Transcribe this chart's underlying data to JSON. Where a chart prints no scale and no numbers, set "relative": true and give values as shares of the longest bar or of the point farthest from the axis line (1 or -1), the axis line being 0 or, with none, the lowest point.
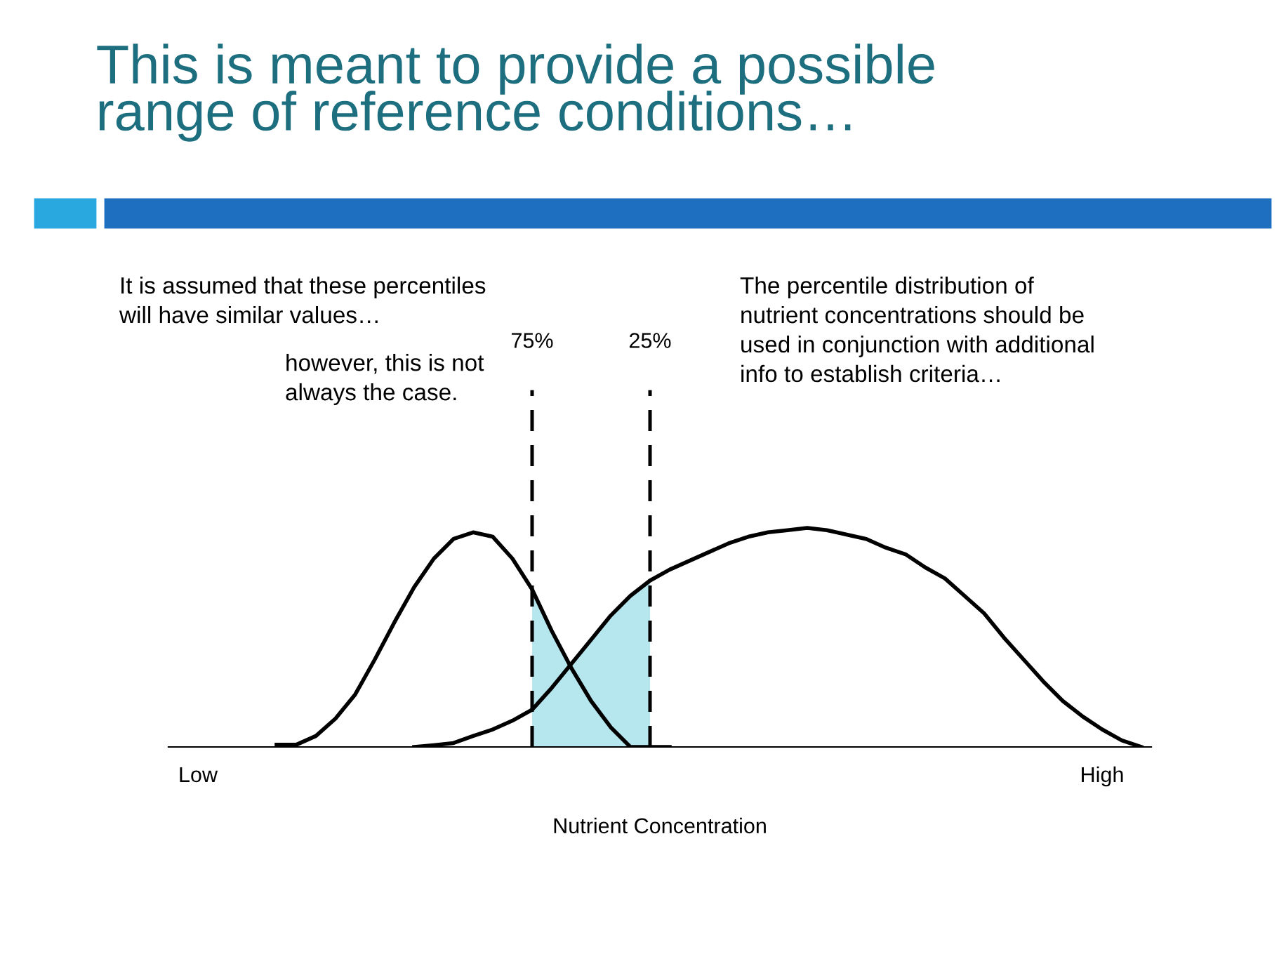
{
  "chart_data": {
    "type": "line",
    "relative": true,
    "title": "This is meant to provide a possible\nrange of reference conditions…",
    "xlabel": "Nutrient Concentration",
    "categories": [
      null,
      "Low",
      null,
      null,
      null,
      null,
      null,
      null,
      null,
      null,
      null,
      null,
      null,
      null,
      null,
      null,
      null,
      null,
      null,
      null,
      null,
      null,
      null,
      null,
      null,
      null,
      null,
      null,
      null,
      null,
      null,
      null,
      null,
      null,
      null,
      null,
      null,
      null,
      null,
      null,
      null,
      null,
      null,
      null,
      null,
      null,
      null,
      "High",
      null,
      null
    ],
    "series": [
      {
        "type": "area",
        "color": "#b6e6ee",
        "values": [
          null,
          null,
          null,
          null,
          null,
          null,
          null,
          null,
          null,
          null,
          null,
          null,
          null,
          null,
          null,
          null,
          null,
          null,
          0.72,
          0.53,
          0.38,
          0.49,
          0.6,
          0.69,
          0.76,
          null,
          null,
          null,
          null,
          null,
          null,
          null,
          null,
          null,
          null,
          null,
          null,
          null,
          null,
          null,
          null,
          null,
          null,
          null,
          null,
          null,
          null,
          null,
          null,
          null
        ]
      },
      {
        "color": "#000000",
        "values": [
          null,
          null,
          null,
          null,
          null,
          0.01,
          0.01,
          0.05,
          0.13,
          0.24,
          0.4,
          0.57,
          0.73,
          0.86,
          0.95,
          0.98,
          0.96,
          0.86,
          0.72,
          0.53,
          0.36,
          0.21,
          0.09,
          0,
          0,
          0,
          null,
          null,
          null,
          null,
          null,
          null,
          null,
          null,
          null,
          null,
          null,
          null,
          null,
          null,
          null,
          null,
          null,
          null,
          null,
          null,
          null,
          null,
          null,
          null
        ]
      },
      {
        "color": "#000000",
        "values": [
          null,
          null,
          null,
          null,
          null,
          null,
          null,
          null,
          null,
          null,
          null,
          null,
          0,
          0.008,
          0.018,
          0.05,
          0.08,
          0.12,
          0.17,
          0.27,
          0.38,
          0.49,
          0.6,
          0.69,
          0.76,
          0.81,
          0.85,
          0.89,
          0.93,
          0.96,
          0.98,
          0.99,
          1.0,
          0.99,
          0.97,
          0.95,
          0.91,
          0.88,
          0.82,
          0.77,
          0.69,
          0.61,
          0.5,
          0.4,
          0.3,
          0.21,
          0.14,
          0.08,
          0.03,
          0
        ]
      }
    ],
    "annotations": [
      "It is assumed that these percentiles\nwill have similar values…",
      "however, this is not\nalways the case.",
      "The percentile distribution of\nnutrient concentrations should be\nused in conjunction with additional\ninfo to establish criteria…",
      "75%",
      "25%"
    ],
    "line_style": "solid",
    "marker": "none",
    "legend": false
  }
}
